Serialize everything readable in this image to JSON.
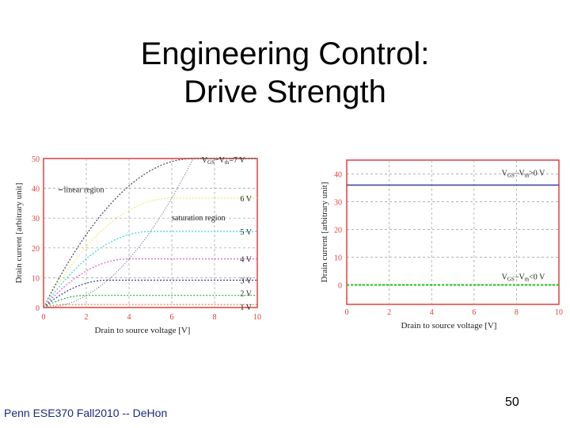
{
  "slide": {
    "title_line1": "Engineering Control:",
    "title_line2": "Drive Strength",
    "footer": "Penn ESE370 Fall2010 -- DeHon",
    "page_number": "50"
  },
  "chart_data": [
    {
      "type": "line",
      "xlabel": "Drain to source voltage [V]",
      "ylabel": "Drain current [arbitrary unit]",
      "xlim": [
        0,
        10
      ],
      "ylim": [
        0,
        50
      ],
      "xticks": [
        0,
        2,
        4,
        6,
        8,
        10
      ],
      "yticks": [
        0,
        10,
        20,
        30,
        40,
        50
      ],
      "grid": true,
      "annotations": [
        "linear region",
        "saturation region"
      ],
      "series": [
        {
          "name": "7 V",
          "vov": 7,
          "color": "#444444"
        },
        {
          "name": "6 V",
          "vov": 6,
          "color": "#f2ea7a"
        },
        {
          "name": "5 V",
          "vov": 5,
          "color": "#36d6e0"
        },
        {
          "name": "4 V",
          "vov": 4,
          "color": "#e060d0"
        },
        {
          "name": "3 V",
          "vov": 3,
          "color": "#3a3a8c"
        },
        {
          "name": "2 V",
          "vov": 2,
          "color": "#20b030"
        },
        {
          "name": "1 V",
          "vov": 1,
          "color": "#e08030"
        }
      ],
      "series_label_prefix": "V",
      "series_label_sub1": "GS",
      "series_label_mid": "−V",
      "series_label_sub2": "th",
      "series_label_suffix": "=7 V",
      "boundary_color": "#555588"
    },
    {
      "type": "line",
      "xlabel": "Drain to source voltage [V]",
      "ylabel": "Drain current [arbitrary unit]",
      "xlim": [
        0,
        10
      ],
      "ylim": [
        -7,
        45
      ],
      "xticks": [
        0,
        2,
        4,
        6,
        8,
        10
      ],
      "yticks": [
        0,
        10,
        20,
        30,
        40
      ],
      "grid": true,
      "series": [
        {
          "label_prefix": "V",
          "label_sub1": "GS",
          "label_mid": "−V",
          "label_sub2": "th",
          "label_suffix": ">0 V",
          "y": 36,
          "color": "#3a3aa0"
        },
        {
          "label_prefix": "V",
          "label_sub1": "GS",
          "label_mid": "−V",
          "label_sub2": "th",
          "label_suffix": "<0 V",
          "y": 0,
          "color": "#20c020"
        }
      ]
    }
  ]
}
